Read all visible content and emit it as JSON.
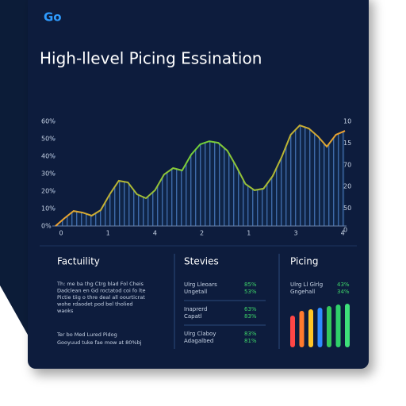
{
  "brand": "Go",
  "title": "High-llevel Picing Essination",
  "right_axis_labels": [
    "10",
    "15",
    "70",
    "20",
    "50",
    "0"
  ],
  "bottom_axis_labels": [
    "0",
    "1",
    "4",
    "2",
    "1",
    "3",
    "4"
  ],
  "chart_data": [
    {
      "type": "line",
      "x": [
        0,
        1,
        2,
        3,
        4,
        5,
        6,
        7,
        8,
        9,
        10,
        11,
        12,
        13,
        14,
        15,
        16,
        17,
        18,
        19,
        20,
        21,
        22,
        23,
        24,
        25,
        26,
        27,
        28,
        29,
        30,
        31,
        32
      ],
      "series": [
        {
          "color": "#f0a030",
          "values": [
            0,
            4.5,
            8.6,
            7.7,
            5.9,
            9.1,
            18.2,
            25.9,
            25,
            18.2,
            15.9,
            20.5,
            29.5,
            33.2,
            31.8,
            40.9,
            46.8,
            48.6,
            47.7,
            43.2,
            34.1,
            24.1,
            20.5,
            21.4,
            28.6,
            39.5,
            52.3,
            57.7,
            55.9,
            51.4,
            45.5,
            52.3,
            54.5
          ]
        }
      ],
      "color2": "#6fd13a",
      "xlim": [
        0,
        32
      ],
      "ylim": [
        0,
        60
      ],
      "yticks": [
        {
          "value": 60,
          "label": "60%"
        },
        {
          "value": 50,
          "label": "50%"
        },
        {
          "value": 40,
          "label": "40%"
        },
        {
          "value": 30,
          "label": "30%"
        },
        {
          "value": 20,
          "label": "20%"
        },
        {
          "value": 10,
          "label": "10%"
        },
        {
          "value": 0,
          "label": "0%"
        }
      ]
    },
    {
      "type": "bar",
      "values": [
        40,
        46,
        48,
        50,
        52,
        54,
        55
      ],
      "colors": [
        "#ff4646",
        "#ff7a2e",
        "#ffc526",
        "#2f8cff",
        "#35c95a",
        "#2fd16a",
        "#3ee07a"
      ],
      "ylim": [
        0,
        60
      ]
    }
  ],
  "panels": [
    {
      "title": "Factuility",
      "lines": [
        "Th: me ba thg Ctrg blad Fol Cheis",
        "Dadclean en Gd roctatod coi fo lte",
        "Pictie tiig o thre deal all oourticrat",
        "wohe rdaodet pod bel tholied",
        "waoks"
      ],
      "lines2": [
        "Ter bo Med Lured Pidog",
        "Gooyuud tuke fae mow at 80%bj"
      ]
    },
    {
      "title": "Stevies",
      "rows": [
        [
          "Ulrg Lleoars",
          "85%",
          "Ungetall",
          "53%"
        ],
        [
          "Inaprerd",
          "63%",
          "Capatl",
          "83%"
        ],
        [
          "Ulrg Claboy",
          "83%",
          "Adagalbed",
          "81%"
        ]
      ]
    },
    {
      "title": "Picing",
      "rows": [
        [
          "Ulrg Ll Glrlg",
          "43%",
          "Gngehall",
          "34%"
        ]
      ]
    }
  ]
}
